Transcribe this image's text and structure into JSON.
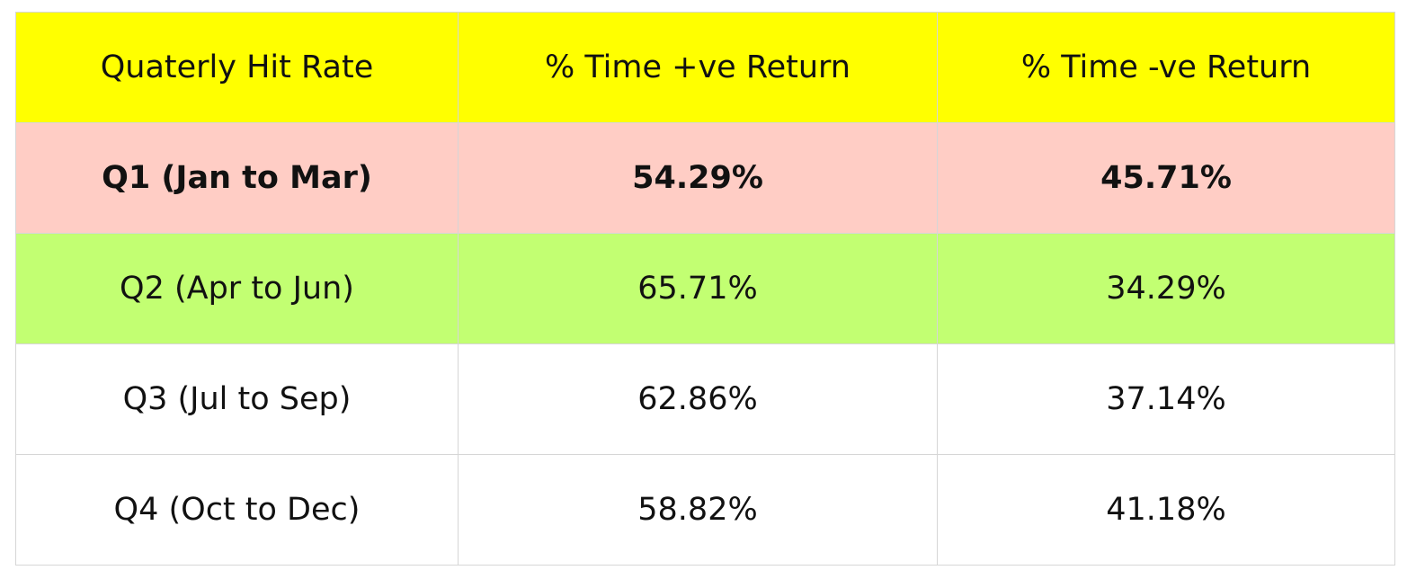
{
  "table": {
    "header": [
      "Quaterly Hit Rate",
      "% Time +ve Return",
      "% Time -ve Return"
    ],
    "rows": [
      [
        "Q1 (Jan to Mar)",
        "54.29%",
        "45.71%"
      ],
      [
        "Q2 (Apr to Jun)",
        "65.71%",
        "34.29%"
      ],
      [
        "Q3 (Jul to Sep)",
        "62.86%",
        "37.14%"
      ],
      [
        "Q4 (Oct to Dec)",
        "58.82%",
        "41.18%"
      ]
    ]
  }
}
